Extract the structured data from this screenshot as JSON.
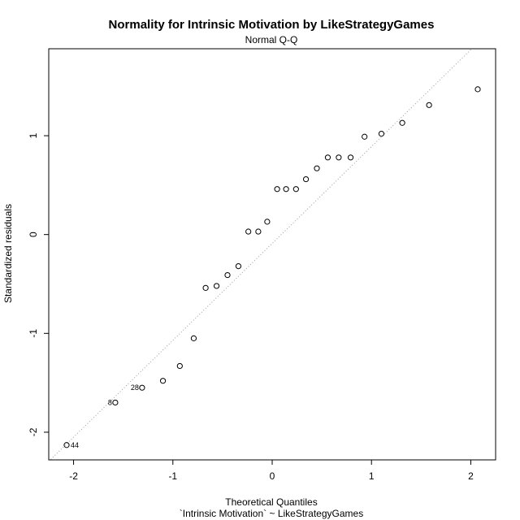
{
  "chart_data": {
    "type": "scatter",
    "title": "Normality for Intrinsic Motivation by LikeStrategyGames",
    "subtitle": "Normal Q-Q",
    "xlabel": "Theoretical Quantiles",
    "xlabel2": "`Intrinsic Motivation` ~ LikeStrategyGames",
    "ylabel": "Standardized residuals",
    "xlim": [
      -2.25,
      2.25
    ],
    "ylim": [
      -2.28,
      1.88
    ],
    "xticks": [
      -2,
      -1,
      0,
      1,
      2
    ],
    "yticks": [
      -2,
      -1,
      0,
      1
    ],
    "xtick_labels": [
      "-2",
      "-1",
      "0",
      "1",
      "2"
    ],
    "ytick_labels": [
      "-2",
      "-1",
      "0",
      "1"
    ],
    "grid": false,
    "reference_line": {
      "style": "dotted",
      "slope": 0.98,
      "intercept": -0.09
    },
    "points": [
      {
        "x": -2.07,
        "y": -2.13,
        "label": "44"
      },
      {
        "x": -1.58,
        "y": -1.7,
        "label": "8"
      },
      {
        "x": -1.31,
        "y": -1.55,
        "label": "28"
      },
      {
        "x": -1.1,
        "y": -1.48,
        "label": ""
      },
      {
        "x": -0.93,
        "y": -1.33,
        "label": ""
      },
      {
        "x": -0.79,
        "y": -1.05,
        "label": ""
      },
      {
        "x": -0.67,
        "y": -0.54,
        "label": ""
      },
      {
        "x": -0.56,
        "y": -0.52,
        "label": ""
      },
      {
        "x": -0.45,
        "y": -0.41,
        "label": ""
      },
      {
        "x": -0.34,
        "y": -0.32,
        "label": ""
      },
      {
        "x": -0.24,
        "y": 0.03,
        "label": ""
      },
      {
        "x": -0.14,
        "y": 0.03,
        "label": ""
      },
      {
        "x": -0.05,
        "y": 0.13,
        "label": ""
      },
      {
        "x": 0.05,
        "y": 0.46,
        "label": ""
      },
      {
        "x": 0.14,
        "y": 0.46,
        "label": ""
      },
      {
        "x": 0.24,
        "y": 0.46,
        "label": ""
      },
      {
        "x": 0.34,
        "y": 0.56,
        "label": ""
      },
      {
        "x": 0.45,
        "y": 0.67,
        "label": ""
      },
      {
        "x": 0.56,
        "y": 0.78,
        "label": ""
      },
      {
        "x": 0.67,
        "y": 0.78,
        "label": ""
      },
      {
        "x": 0.79,
        "y": 0.78,
        "label": ""
      },
      {
        "x": 0.93,
        "y": 0.99,
        "label": ""
      },
      {
        "x": 1.1,
        "y": 1.02,
        "label": ""
      },
      {
        "x": 1.31,
        "y": 1.13,
        "label": ""
      },
      {
        "x": 1.58,
        "y": 1.31,
        "label": ""
      },
      {
        "x": 2.07,
        "y": 1.47,
        "label": ""
      }
    ]
  }
}
